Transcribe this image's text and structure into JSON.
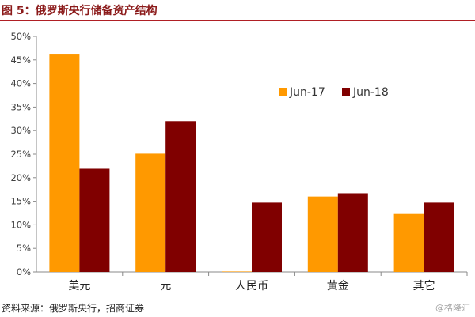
{
  "header": {
    "title": "图 5：俄罗斯央行储备资产结构"
  },
  "footer": {
    "source": "资料来源：俄罗斯央行，招商证券",
    "watermark": "@格隆汇"
  },
  "colors": {
    "title": "#8b1a1a",
    "rule": "#b01f24",
    "series_1": "#FF9900",
    "series_2": "#800000"
  },
  "chart_data": {
    "type": "bar",
    "categories": [
      "美元",
      "元",
      "人民币",
      "黄金",
      "其它"
    ],
    "series": [
      {
        "name": "Jun-17",
        "values": [
          46.3,
          25.1,
          0.1,
          16.0,
          12.3
        ]
      },
      {
        "name": "Jun-18",
        "values": [
          21.9,
          32.0,
          14.7,
          16.7,
          14.7
        ]
      }
    ],
    "ylim": [
      0,
      50
    ],
    "yticks": [
      "0%",
      "5%",
      "10%",
      "15%",
      "20%",
      "25%",
      "30%",
      "35%",
      "40%",
      "45%",
      "50%"
    ],
    "grid": false,
    "legend_position": "top-right"
  }
}
